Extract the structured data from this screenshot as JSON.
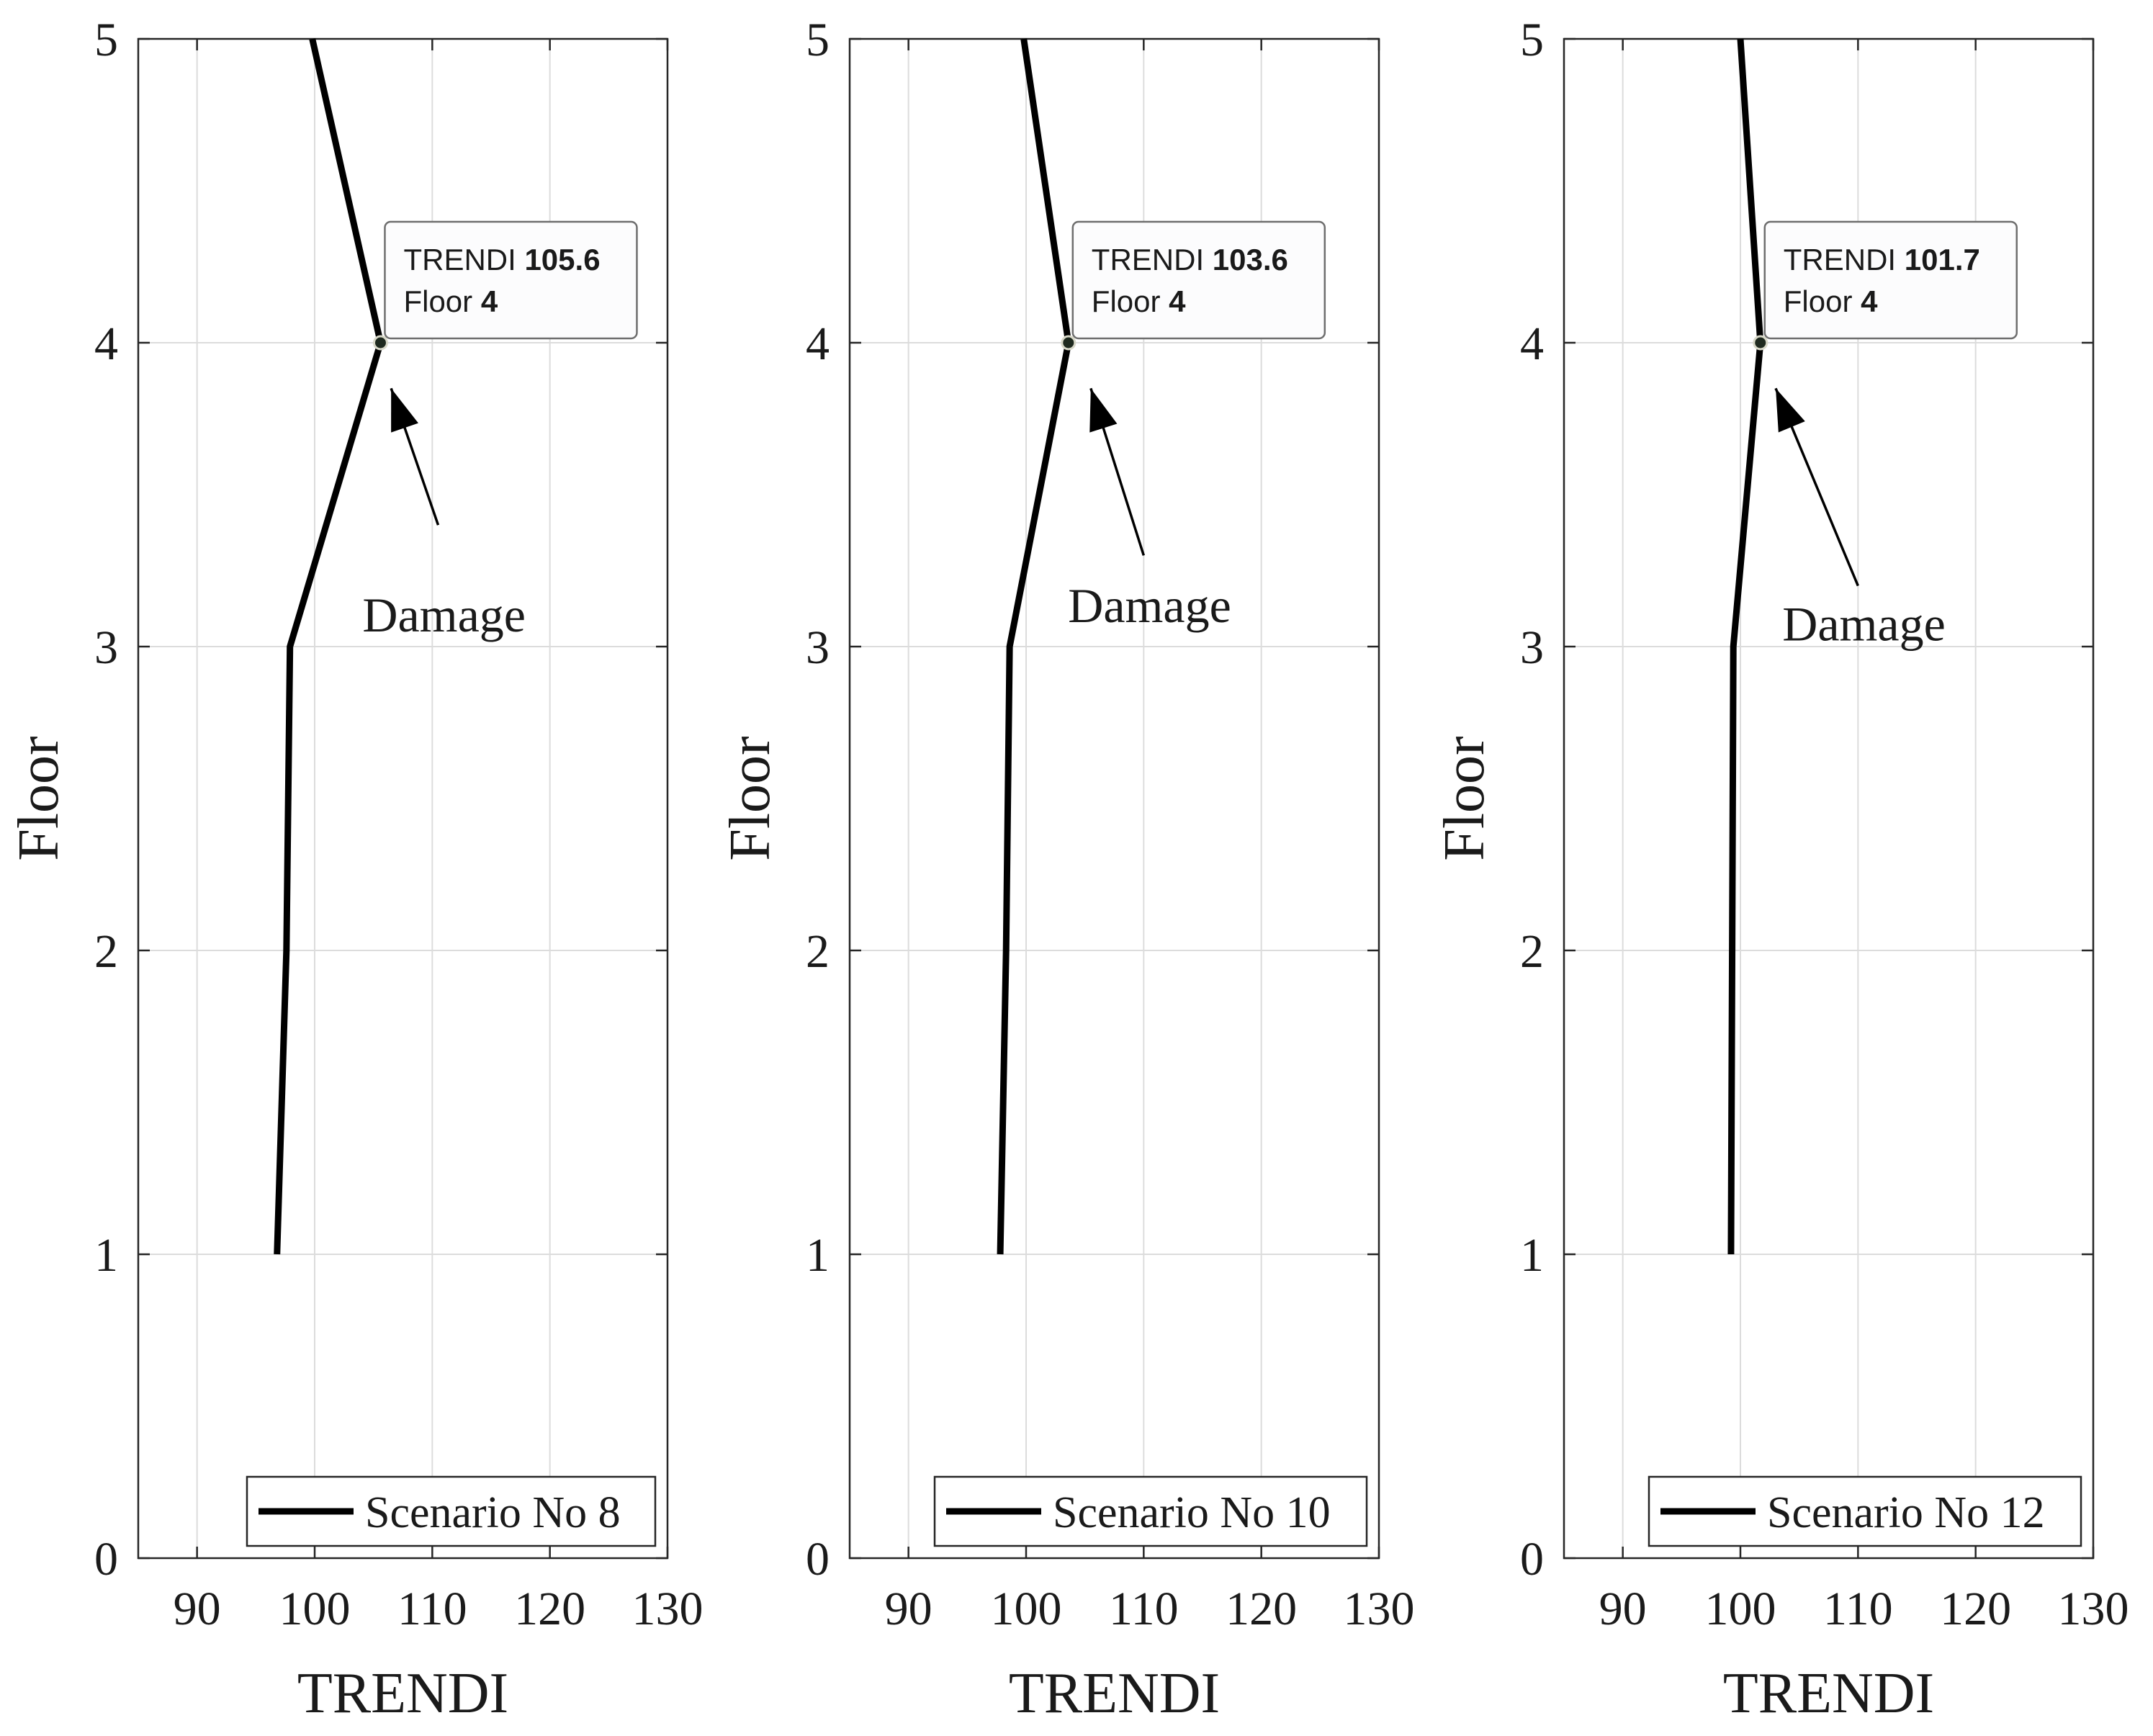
{
  "chart_data": [
    {
      "type": "line",
      "series": [
        {
          "name": "Scenario No 8",
          "x": [
            96.8,
            97.6,
            97.9,
            105.6,
            99.8
          ],
          "y": [
            1,
            2,
            3,
            4,
            5
          ]
        }
      ],
      "xlabel": "TRENDI",
      "ylabel": "Floor",
      "xlim": [
        85,
        130
      ],
      "ylim": [
        0,
        5
      ],
      "xticks": [
        "90",
        "100",
        "110",
        "120",
        "130"
      ],
      "yticks": [
        "0",
        "1",
        "2",
        "3",
        "4",
        "5"
      ],
      "grid": true,
      "legend": {
        "position": "bottom-right",
        "label": "Scenario No 8"
      },
      "datatip": {
        "x": 105.6,
        "y": 4,
        "x_label": "TRENDI",
        "x_value": "105.6",
        "y_label": "Floor",
        "y_value": "4"
      },
      "annotation": {
        "text": "Damage",
        "from": [
          110.5,
          3.4
        ],
        "to": [
          106.5,
          3.85
        ],
        "text_at": [
          111,
          3.05
        ]
      }
    },
    {
      "type": "line",
      "series": [
        {
          "name": "Scenario No 10",
          "x": [
            97.8,
            98.3,
            98.6,
            103.6,
            99.8
          ],
          "y": [
            1,
            2,
            3,
            4,
            5
          ]
        }
      ],
      "xlabel": "TRENDI",
      "ylabel": "Floor",
      "xlim": [
        85,
        130
      ],
      "ylim": [
        0,
        5
      ],
      "xticks": [
        "90",
        "100",
        "110",
        "120",
        "130"
      ],
      "yticks": [
        "0",
        "1",
        "2",
        "3",
        "4",
        "5"
      ],
      "grid": true,
      "legend": {
        "position": "bottom-right",
        "label": "Scenario No 10"
      },
      "datatip": {
        "x": 103.6,
        "y": 4,
        "x_label": "TRENDI",
        "x_value": "103.6",
        "y_label": "Floor",
        "y_value": "4"
      },
      "annotation": {
        "text": "Damage",
        "from": [
          110,
          3.3
        ],
        "to": [
          105.5,
          3.85
        ],
        "text_at": [
          110.5,
          3.08
        ]
      }
    },
    {
      "type": "line",
      "series": [
        {
          "name": "Scenario No 12",
          "x": [
            99.2,
            99.3,
            99.4,
            101.7,
            100.0
          ],
          "y": [
            1,
            2,
            3,
            4,
            5
          ]
        }
      ],
      "xlabel": "TRENDI",
      "ylabel": "Floor",
      "xlim": [
        85,
        130
      ],
      "ylim": [
        0,
        5
      ],
      "xticks": [
        "90",
        "100",
        "110",
        "120",
        "130"
      ],
      "yticks": [
        "0",
        "1",
        "2",
        "3",
        "4",
        "5"
      ],
      "grid": true,
      "legend": {
        "position": "bottom-right",
        "label": "Scenario No 12"
      },
      "datatip": {
        "x": 101.7,
        "y": 4,
        "x_label": "TRENDI",
        "x_value": "101.7",
        "y_label": "Floor",
        "y_value": "4"
      },
      "annotation": {
        "text": "Damage",
        "from": [
          110,
          3.2
        ],
        "to": [
          103,
          3.85
        ],
        "text_at": [
          110.5,
          3.02
        ]
      }
    }
  ],
  "colors": {
    "line": "#000000",
    "grid": "#dcdcdc",
    "axis": "#262626",
    "marker": "#1f2a1f",
    "tip_border": "#6e6e6e",
    "tip_fill": "#fcfcfd"
  }
}
